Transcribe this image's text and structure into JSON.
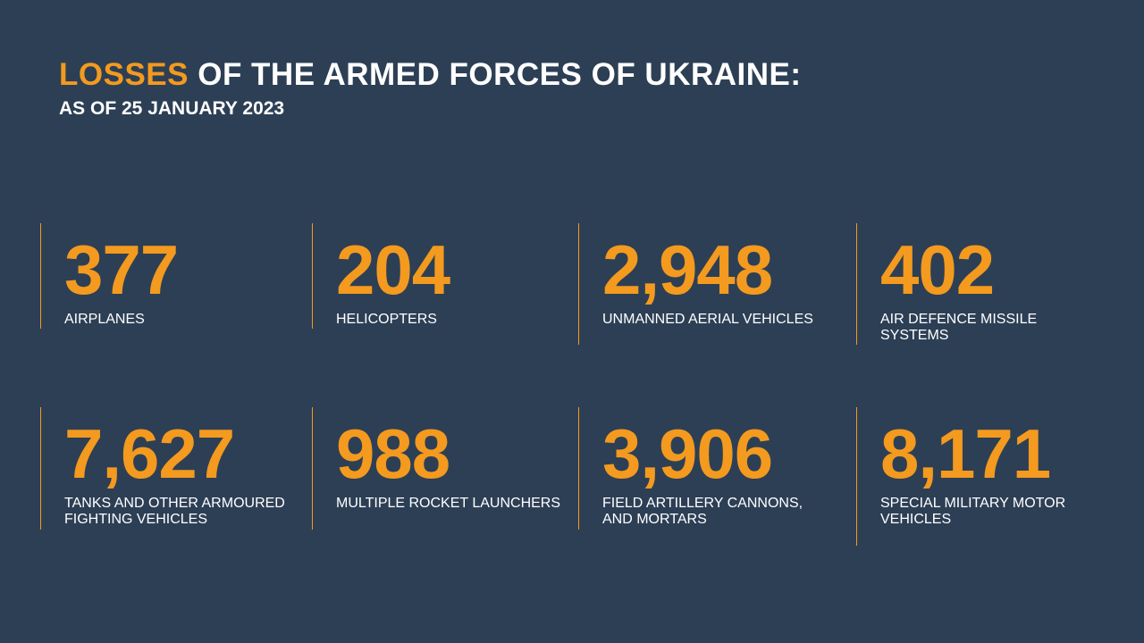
{
  "header": {
    "title_highlight": "LOSSES",
    "title_rest": "OF THE ARMED FORCES OF UKRAINE:",
    "subtitle": "AS OF 25 JANUARY 2023"
  },
  "items": [
    {
      "value": "377",
      "label_lines": [
        "AIRPLANES"
      ]
    },
    {
      "value": "204",
      "label_lines": [
        "HELICOPTERS"
      ]
    },
    {
      "value": "2,948",
      "label_lines": [
        "UNMANNED AERIAL VEHICLES"
      ]
    },
    {
      "value": "402",
      "label_lines": [
        "AIR DEFENCE MISSILE",
        "SYSTEMS"
      ]
    },
    {
      "value": "7,627",
      "label_lines": [
        "TANKS AND OTHER ARMOURED",
        "FIGHTING VEHICLES"
      ]
    },
    {
      "value": "988",
      "label_lines": [
        "MULTIPLE ROCKET LAUNCHERS"
      ]
    },
    {
      "value": "3,906",
      "label_lines": [
        "FIELD ARTILLERY CANNONS,",
        "AND MORTARS"
      ]
    },
    {
      "value": "8,171",
      "label_lines": [
        "SPECIAL MILITARY MOTOR",
        "VEHICLES"
      ]
    }
  ]
}
